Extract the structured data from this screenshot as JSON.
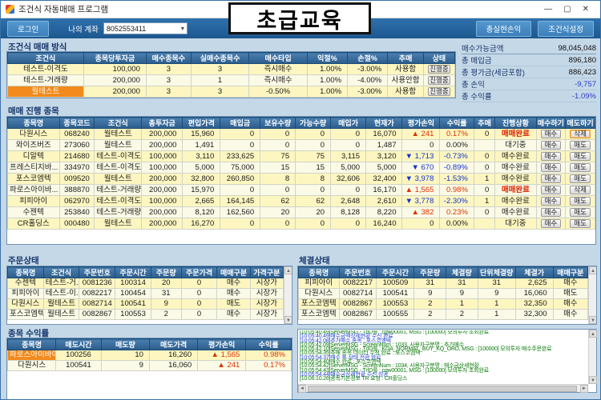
{
  "window": {
    "title": "조건식 자동매매 프로그램",
    "controls": {
      "minimize": "—",
      "maximize": "▢",
      "close": "✕"
    }
  },
  "overlay": {
    "label": "초급교육"
  },
  "toolbar": {
    "login": "로그인",
    "account_label": "나의 계좌",
    "account_value": "8052553411",
    "realized_pl": "총실현손익",
    "condition_settings": "조건식설정"
  },
  "sections": {
    "condition": "조건식 매매 방식",
    "progress": "매매 진행 종목",
    "orders": "주문상태",
    "executions": "체결상태",
    "profit": "종목 수익률"
  },
  "summary": {
    "rows": [
      {
        "label": "매수가능금액",
        "value": "98,045,048",
        "cls": ""
      },
      {
        "label": "총 매입금",
        "value": "896,180",
        "cls": ""
      },
      {
        "label": "총 평가금(세금포함)",
        "value": "886,423",
        "cls": ""
      },
      {
        "label": "총 손익",
        "value": "-9,757",
        "cls": "neg"
      },
      {
        "label": "총 수익률",
        "value": "-1.09%",
        "cls": "neg"
      }
    ]
  },
  "condition_table": {
    "headers": [
      "조건식",
      "종목당투자금",
      "매수종목수",
      "실매수종목수",
      "매수타입",
      "익절%",
      "손절%",
      "추매",
      "상태"
    ],
    "widths": [
      17,
      14,
      10,
      13,
      13,
      9,
      9,
      8,
      7
    ],
    "aligns": [
      "c",
      "r",
      "c",
      "c",
      "c",
      "r",
      "r",
      "c",
      "c"
    ],
    "buttons": [
      8
    ],
    "hl": [
      [
        2,
        0
      ]
    ],
    "rows": [
      [
        "테스트-이격도",
        "100,000",
        "3",
        "3",
        "즉시매수",
        "1.00%",
        "-3.00%",
        "사용함",
        "진행중"
      ],
      [
        "테스트-거래량",
        "200,000",
        "3",
        "1",
        "즉시매수",
        "1.00%",
        "-4.00%",
        "사용안함",
        "진행중"
      ],
      [
        "월테스트",
        "200,000",
        "3",
        "3",
        "-0.50%",
        "1.00%",
        "-3.00%",
        "사용함",
        "진행중"
      ]
    ]
  },
  "progress_table": {
    "headers": [
      "종목명",
      "종목코드",
      "조건식",
      "총투자금",
      "편입가격",
      "매입금",
      "보유수량",
      "가능수량",
      "매입가",
      "현재가",
      "평가손익",
      "수익률",
      "추매",
      "진행상황",
      "매수하기",
      "매도하기"
    ],
    "widths": [
      8.8,
      6.0,
      8.0,
      7.0,
      6.4,
      6.8,
      6.0,
      6.0,
      6.0,
      6.2,
      6.4,
      5.8,
      3.6,
      7.0,
      5.0,
      5.0
    ],
    "aligns": [
      "c",
      "c",
      "c",
      "r",
      "r",
      "r",
      "r",
      "r",
      "r",
      "r",
      "r",
      "r",
      "r",
      "c",
      "c",
      "c"
    ],
    "buttons": [
      14,
      15
    ],
    "pct": true,
    "focus": [
      0,
      15
    ],
    "rows": [
      [
        "다원시스",
        "068240",
        "월테스트",
        "200,000",
        "15,960",
        "0",
        "0",
        "0",
        "0",
        "16,070",
        "▲ 241",
        "0.17%",
        "0",
        "매매완료",
        "매수",
        "삭제"
      ],
      [
        "와이즈버즈",
        "273060",
        "월테스트",
        "200,000",
        "1,491",
        "0",
        "0",
        "0",
        "0",
        "1,487",
        "0",
        "0.00%",
        "",
        "대기중",
        "매수",
        "매도"
      ],
      [
        "디알텍",
        "214680",
        "테스트-이격도",
        "100,000",
        "3,110",
        "233,625",
        "75",
        "75",
        "3,115",
        "3,120",
        "▼ 1,713",
        "-0.73%",
        "0",
        "매수완료",
        "매수",
        "매도"
      ],
      [
        "프레스티지바...",
        "334970",
        "테스트-이격도",
        "100,000",
        "5,000",
        "75,000",
        "15",
        "15",
        "5,000",
        "5,000",
        "▼ 670",
        "-0.89%",
        "0",
        "매수완료",
        "매수",
        "매도"
      ],
      [
        "포스코엠텍",
        "009520",
        "월테스트",
        "200,000",
        "32,800",
        "260,850",
        "8",
        "8",
        "32,606",
        "32,400",
        "▼ 3,978",
        "-1.53%",
        "1",
        "매수완료",
        "매수",
        "매도"
      ],
      [
        "파로스아이바...",
        "388870",
        "테스트-거래량",
        "200,000",
        "15,970",
        "0",
        "0",
        "0",
        "0",
        "16,170",
        "▲ 1,565",
        "0.98%",
        "0",
        "매매완료",
        "매수",
        "삭제"
      ],
      [
        "피피아이",
        "062970",
        "테스트-이격도",
        "100,000",
        "2,665",
        "164,145",
        "62",
        "62",
        "2,648",
        "2,610",
        "▼ 3,778",
        "-2.30%",
        "1",
        "매수완료",
        "매수",
        "매도"
      ],
      [
        "수젠텍",
        "253840",
        "테스트-거래량",
        "200,000",
        "8,120",
        "162,560",
        "20",
        "20",
        "8,128",
        "8,220",
        "▲ 382",
        "0.23%",
        "0",
        "매수완료",
        "매수",
        "매도"
      ],
      [
        "CR홀딩스",
        "000480",
        "월테스트",
        "200,000",
        "16,270",
        "0",
        "0",
        "0",
        "0",
        "16,240",
        "0",
        "0.00%",
        "",
        "대기중",
        "매수",
        "매도"
      ]
    ]
  },
  "order_table": {
    "headers": [
      "종목명",
      "조건식",
      "주문번호",
      "주문시간",
      "주문량",
      "주문가격",
      "매매구분",
      "가격구분"
    ],
    "widths": [
      13,
      13,
      13,
      13,
      11,
      13,
      12,
      12
    ],
    "aligns": [
      "c",
      "c",
      "c",
      "c",
      "c",
      "c",
      "c",
      "c"
    ],
    "rows": [
      [
        "수젠텍",
        "테스트-거...",
        "0081236",
        "100314",
        "20",
        "0",
        "매수",
        "시장가"
      ],
      [
        "피피아이",
        "테스트-이...",
        "0082217",
        "100454",
        "31",
        "0",
        "매수",
        "시장가"
      ],
      [
        "다원시스",
        "월테스트",
        "0082714",
        "100541",
        "9",
        "0",
        "매도",
        "시장가"
      ],
      [
        "포스코엠텍",
        "월테스트",
        "0082867",
        "100553",
        "2",
        "0",
        "매수",
        "시장가"
      ]
    ]
  },
  "execution_table": {
    "headers": [
      "종목명",
      "주문번호",
      "주문시간",
      "주문량",
      "체결량",
      "단위체결량",
      "체결가",
      "매매구분"
    ],
    "widths": [
      14,
      13,
      13,
      11,
      11,
      13,
      13,
      12
    ],
    "aligns": [
      "c",
      "c",
      "c",
      "c",
      "c",
      "c",
      "r",
      "c"
    ],
    "rows": [
      [
        "피피아이",
        "0082217",
        "100509",
        "31",
        "31",
        "31",
        "2,625",
        "매수"
      ],
      [
        "다원시스",
        "0082714",
        "100541",
        "9",
        "9",
        "9",
        "16,060",
        "매도"
      ],
      [
        "포스코엠텍",
        "0082867",
        "100553",
        "2",
        "1",
        "1",
        "32,350",
        "매수"
      ],
      [
        "포스코엠텍",
        "0082867",
        "100555",
        "2",
        "2",
        "1",
        "32,300",
        "매수"
      ]
    ]
  },
  "profit_table": {
    "headers": [
      "종목명",
      "매도시간",
      "매도량",
      "매도가격",
      "평가손익",
      "수익률"
    ],
    "widths": [
      17,
      16,
      17,
      17,
      17,
      16
    ],
    "aligns": [
      "c",
      "c",
      "r",
      "r",
      "r",
      "r"
    ],
    "pct": true,
    "hl": [
      [
        0,
        0
      ]
    ],
    "rows": [
      [
        "파로스아이바이오",
        "100256",
        "10",
        "16,260",
        "▲ 1,565",
        "0.98%"
      ],
      [
        "다원시스",
        "100541",
        "9",
        "16,060",
        "▲ 241",
        "0.17%"
      ]
    ]
  },
  "log": {
    "lines": [
      {
        "color": "green",
        "text": "[10:05:40.49]ServerMSG  -  TrID를 : cgw00001,  MSG : [100000] 모의투자 조회완료"
      },
      {
        "color": "blue",
        "text": "[10:05:40.49]매수금액상세현황 수신 완료"
      },
      {
        "color": "blue",
        "text": "[10:05:42.08]추가매수 종목 : 포스코엠텍"
      },
      {
        "color": "green",
        "text": "[10:05:42.09]ServerMSG  -  ScreenNum : 1033, 사용자구분명 : 추가매수"
      },
      {
        "color": "green",
        "text": "[10:05:42.10]ServerMSG  -  TrID를 : KOA_NORMAL_BUY_KQ_ORD,  MSG : [100000] 모의투자 매수주문완료"
      },
      {
        "color": "green",
        "text": "[10:05:54.35]추매 종목 데이터 수정 완료 : 포스코엠텍"
      },
      {
        "color": "blue",
        "text": "[10:05:54.37]매수 후 상태 전환 완료"
      },
      {
        "color": "green",
        "text": "[10:05:54.40]매수 완료 : 포스코엠텍"
      },
      {
        "color": "green",
        "text": "[10:05:54.42]ServerMSG  -  ScreenNum : 1034, 사용자구분명 : 매수금상세현황"
      },
      {
        "color": "green",
        "text": "[10:05:54.43]ServerMSG  -  TrID를 : cgw00001,  MSG : [100000] 모의투자 조회완료"
      },
      {
        "color": "blue",
        "text": "[10:05:54.44]매수금상세현황 수신 성공"
      },
      {
        "color": "green",
        "text": "[10:06:10.26]종목기본정보 TR 요청 : CR홀딩스"
      }
    ]
  }
}
